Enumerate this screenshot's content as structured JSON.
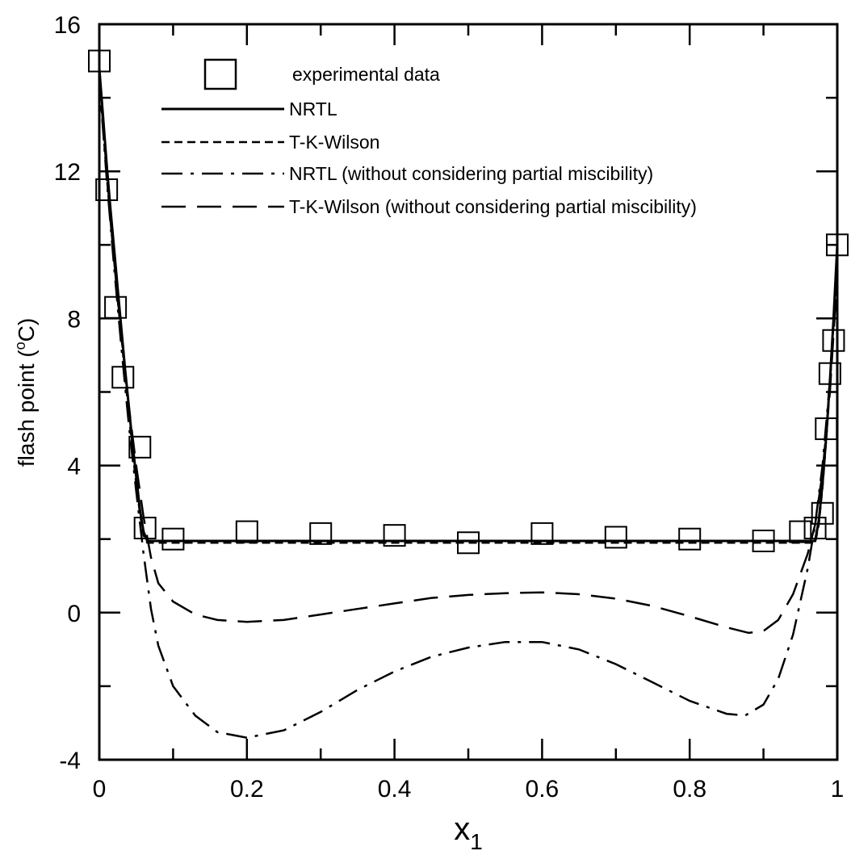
{
  "chart_data": {
    "type": "line",
    "title": "",
    "xlabel": "x",
    "xlabel_subscript": "1",
    "ylabel": "flash point (",
    "ylabel_sup": "o",
    "ylabel_unit": "C)",
    "xlim": [
      0,
      1
    ],
    "ylim": [
      -4,
      16
    ],
    "x_ticks": [
      0,
      0.2,
      0.4,
      0.6,
      0.8,
      1
    ],
    "x_tick_labels": [
      "0",
      "0.2",
      "0.4",
      "0.6",
      "0.8",
      "1"
    ],
    "y_ticks": [
      -4,
      0,
      4,
      8,
      12,
      16
    ],
    "y_tick_labels": [
      "-4",
      "0",
      "4",
      "8",
      "12",
      "16"
    ],
    "grid": false,
    "legend_position": "top",
    "series": [
      {
        "name": "experimental data",
        "style": "markers",
        "points": [
          [
            0,
            15.0
          ],
          [
            0.01,
            11.5
          ],
          [
            0.022,
            8.3
          ],
          [
            0.032,
            6.4
          ],
          [
            0.055,
            4.5
          ],
          [
            0.062,
            2.3
          ],
          [
            0.1,
            2.0
          ],
          [
            0.2,
            2.2
          ],
          [
            0.3,
            2.15
          ],
          [
            0.4,
            2.1
          ],
          [
            0.5,
            1.9
          ],
          [
            0.6,
            2.15
          ],
          [
            0.7,
            2.05
          ],
          [
            0.8,
            2.0
          ],
          [
            0.9,
            1.95
          ],
          [
            0.95,
            2.2
          ],
          [
            0.97,
            2.3
          ],
          [
            0.98,
            2.7
          ],
          [
            0.985,
            5.0
          ],
          [
            0.99,
            6.5
          ],
          [
            0.995,
            7.4
          ],
          [
            1.0,
            10.0
          ]
        ]
      },
      {
        "name": "NRTL",
        "style": "solid",
        "points": [
          [
            0,
            14.8
          ],
          [
            0.005,
            13.5
          ],
          [
            0.01,
            12.2
          ],
          [
            0.015,
            11.0
          ],
          [
            0.02,
            9.9
          ],
          [
            0.025,
            8.8
          ],
          [
            0.03,
            7.7
          ],
          [
            0.035,
            6.6
          ],
          [
            0.04,
            5.6
          ],
          [
            0.045,
            4.6
          ],
          [
            0.05,
            3.7
          ],
          [
            0.055,
            2.8
          ],
          [
            0.06,
            2.2
          ],
          [
            0.065,
            1.95
          ],
          [
            0.1,
            1.95
          ],
          [
            0.2,
            1.95
          ],
          [
            0.3,
            1.95
          ],
          [
            0.4,
            1.95
          ],
          [
            0.5,
            1.95
          ],
          [
            0.6,
            1.95
          ],
          [
            0.7,
            1.95
          ],
          [
            0.8,
            1.95
          ],
          [
            0.9,
            1.95
          ],
          [
            0.95,
            1.95
          ],
          [
            0.97,
            1.95
          ],
          [
            0.975,
            2.5
          ],
          [
            0.98,
            3.5
          ],
          [
            0.985,
            4.8
          ],
          [
            0.99,
            6.3
          ],
          [
            0.995,
            8.0
          ],
          [
            1.0,
            10.0
          ]
        ]
      },
      {
        "name": "T-K-Wilson",
        "style": "dashed",
        "points": [
          [
            0,
            14.5
          ],
          [
            0.005,
            13.2
          ],
          [
            0.01,
            11.9
          ],
          [
            0.015,
            10.7
          ],
          [
            0.02,
            9.6
          ],
          [
            0.025,
            8.5
          ],
          [
            0.03,
            7.5
          ],
          [
            0.035,
            6.4
          ],
          [
            0.04,
            5.4
          ],
          [
            0.045,
            4.4
          ],
          [
            0.05,
            3.5
          ],
          [
            0.055,
            2.7
          ],
          [
            0.06,
            2.1
          ],
          [
            0.065,
            1.9
          ],
          [
            0.1,
            1.9
          ],
          [
            0.2,
            1.9
          ],
          [
            0.3,
            1.9
          ],
          [
            0.4,
            1.9
          ],
          [
            0.5,
            1.9
          ],
          [
            0.6,
            1.9
          ],
          [
            0.7,
            1.9
          ],
          [
            0.8,
            1.9
          ],
          [
            0.9,
            1.9
          ],
          [
            0.95,
            1.9
          ],
          [
            0.97,
            1.9
          ],
          [
            0.975,
            2.4
          ],
          [
            0.98,
            3.4
          ],
          [
            0.985,
            4.7
          ],
          [
            0.99,
            6.2
          ],
          [
            0.995,
            7.9
          ],
          [
            1.0,
            9.8
          ]
        ]
      },
      {
        "name": "NRTL (without considering partial miscibility)",
        "style": "dashdot",
        "points": [
          [
            0,
            14.5
          ],
          [
            0.01,
            11.8
          ],
          [
            0.02,
            9.4
          ],
          [
            0.03,
            7.2
          ],
          [
            0.04,
            5.1
          ],
          [
            0.05,
            3.3
          ],
          [
            0.06,
            1.6
          ],
          [
            0.07,
            0.1
          ],
          [
            0.08,
            -0.9
          ],
          [
            0.1,
            -2.0
          ],
          [
            0.13,
            -2.8
          ],
          [
            0.16,
            -3.25
          ],
          [
            0.2,
            -3.4
          ],
          [
            0.25,
            -3.2
          ],
          [
            0.3,
            -2.7
          ],
          [
            0.35,
            -2.1
          ],
          [
            0.4,
            -1.6
          ],
          [
            0.45,
            -1.2
          ],
          [
            0.5,
            -0.95
          ],
          [
            0.55,
            -0.8
          ],
          [
            0.6,
            -0.8
          ],
          [
            0.65,
            -1.0
          ],
          [
            0.7,
            -1.4
          ],
          [
            0.75,
            -1.9
          ],
          [
            0.8,
            -2.4
          ],
          [
            0.85,
            -2.75
          ],
          [
            0.875,
            -2.8
          ],
          [
            0.9,
            -2.5
          ],
          [
            0.92,
            -1.8
          ],
          [
            0.94,
            -0.6
          ],
          [
            0.96,
            1.2
          ],
          [
            0.97,
            2.4
          ],
          [
            0.98,
            4.0
          ],
          [
            0.99,
            6.3
          ],
          [
            1.0,
            9.3
          ]
        ]
      },
      {
        "name": "T-K-Wilson (without considering partial miscibility)",
        "style": "longdash",
        "points": [
          [
            0,
            14.6
          ],
          [
            0.01,
            12.0
          ],
          [
            0.02,
            9.6
          ],
          [
            0.03,
            7.5
          ],
          [
            0.04,
            5.6
          ],
          [
            0.05,
            4.0
          ],
          [
            0.06,
            2.6
          ],
          [
            0.07,
            1.5
          ],
          [
            0.08,
            0.8
          ],
          [
            0.1,
            0.3
          ],
          [
            0.13,
            -0.05
          ],
          [
            0.16,
            -0.2
          ],
          [
            0.2,
            -0.25
          ],
          [
            0.25,
            -0.2
          ],
          [
            0.3,
            -0.05
          ],
          [
            0.35,
            0.1
          ],
          [
            0.4,
            0.25
          ],
          [
            0.45,
            0.4
          ],
          [
            0.5,
            0.48
          ],
          [
            0.55,
            0.53
          ],
          [
            0.6,
            0.55
          ],
          [
            0.65,
            0.5
          ],
          [
            0.7,
            0.38
          ],
          [
            0.75,
            0.18
          ],
          [
            0.8,
            -0.1
          ],
          [
            0.85,
            -0.4
          ],
          [
            0.88,
            -0.55
          ],
          [
            0.9,
            -0.5
          ],
          [
            0.92,
            -0.2
          ],
          [
            0.94,
            0.5
          ],
          [
            0.96,
            1.6
          ],
          [
            0.97,
            2.4
          ],
          [
            0.98,
            3.8
          ],
          [
            0.99,
            6.0
          ],
          [
            1.0,
            9.2
          ]
        ]
      }
    ]
  }
}
